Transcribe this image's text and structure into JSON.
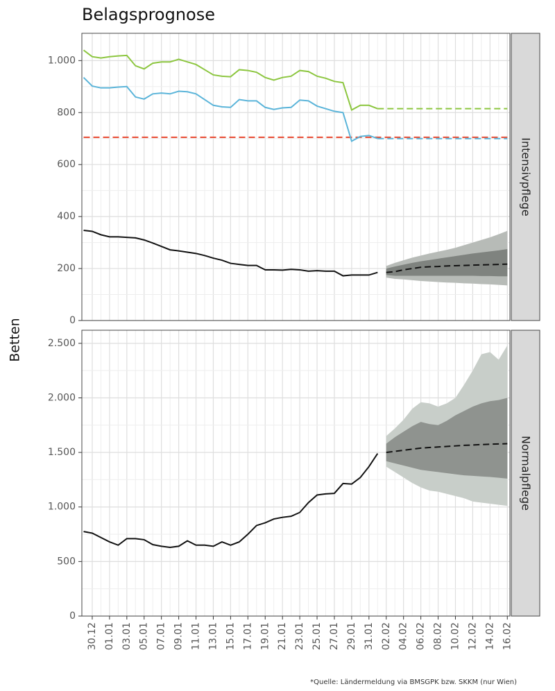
{
  "title": "Belagsprognose",
  "y_label": "Betten",
  "source": "*Quelle: Ländermeldung via BMSGPK bzw. SKKM (nur Wien)",
  "chart_data": [
    {
      "type": "line",
      "panel_label": "Intensivpflege",
      "xlim": [
        -1.2,
        48.3
      ],
      "ylim": [
        0,
        1105
      ],
      "xticks": [
        {
          "value": 0,
          "label": "30.12"
        },
        {
          "value": 2,
          "label": "01.01"
        },
        {
          "value": 4,
          "label": "03.01"
        },
        {
          "value": 6,
          "label": "05.01"
        },
        {
          "value": 8,
          "label": "07.01"
        },
        {
          "value": 10,
          "label": "09.01"
        },
        {
          "value": 12,
          "label": "11.01"
        },
        {
          "value": 14,
          "label": "13.01"
        },
        {
          "value": 16,
          "label": "15.01"
        },
        {
          "value": 18,
          "label": "17.01"
        },
        {
          "value": 20,
          "label": "19.01"
        },
        {
          "value": 22,
          "label": "21.01"
        },
        {
          "value": 24,
          "label": "23.01"
        },
        {
          "value": 26,
          "label": "25.01"
        },
        {
          "value": 28,
          "label": "27.01"
        },
        {
          "value": 30,
          "label": "29.01"
        },
        {
          "value": 32,
          "label": "31.01"
        },
        {
          "value": 34,
          "label": "02.02"
        },
        {
          "value": 36,
          "label": "04.02"
        },
        {
          "value": 38,
          "label": "06.02"
        },
        {
          "value": 40,
          "label": "08.02"
        },
        {
          "value": 42,
          "label": "10.02"
        },
        {
          "value": 44,
          "label": "12.02"
        },
        {
          "value": 46,
          "label": "14.02"
        },
        {
          "value": 48,
          "label": "16.02"
        }
      ],
      "yticks": [
        0,
        200,
        400,
        600,
        800,
        {
          "value": 1000,
          "label": "1.000"
        }
      ],
      "grid": true,
      "bands": [
        {
          "color": "#b7bbb7",
          "x": [
            34,
            35,
            36,
            37,
            38,
            39,
            40,
            41,
            42,
            43,
            44,
            45,
            46,
            47,
            48
          ],
          "lower": [
            165,
            160,
            158,
            155,
            152,
            150,
            148,
            146,
            145,
            143,
            142,
            140,
            139,
            137,
            135
          ],
          "upper": [
            210,
            222,
            232,
            242,
            250,
            258,
            265,
            272,
            280,
            290,
            300,
            310,
            320,
            332,
            345
          ]
        },
        {
          "color": "#7f837f",
          "x": [
            34,
            35,
            36,
            37,
            38,
            39,
            40,
            41,
            42,
            43,
            44,
            45,
            46,
            47,
            48
          ],
          "lower": [
            175,
            172,
            172,
            172,
            172,
            172,
            172,
            172,
            172,
            172,
            172,
            171,
            171,
            170,
            170
          ],
          "upper": [
            200,
            208,
            215,
            222,
            228,
            233,
            238,
            243,
            248,
            253,
            258,
            262,
            266,
            270,
            275
          ]
        }
      ],
      "series": [
        {
          "color": "#e8452c",
          "dash": true,
          "x": [
            -1,
            48
          ],
          "values": [
            705,
            705
          ]
        },
        {
          "color": "#8cc63f",
          "x": [
            -1,
            0,
            1,
            2,
            3,
            4,
            5,
            6,
            7,
            8,
            9,
            10,
            11,
            12,
            13,
            14,
            15,
            16,
            17,
            18,
            19,
            20,
            21,
            22,
            23,
            24,
            25,
            26,
            27,
            28,
            29,
            30,
            31,
            32,
            33
          ],
          "values": [
            1040,
            1015,
            1010,
            1015,
            1018,
            1020,
            980,
            968,
            990,
            995,
            995,
            1005,
            995,
            985,
            965,
            945,
            940,
            938,
            965,
            962,
            955,
            935,
            925,
            935,
            940,
            962,
            958,
            940,
            932,
            920,
            915,
            810,
            828,
            828,
            815
          ]
        },
        {
          "color": "#8cc63f",
          "dash": true,
          "x": [
            33,
            48
          ],
          "values": [
            815,
            815
          ]
        },
        {
          "color": "#5ab4d9",
          "x": [
            -1,
            0,
            1,
            2,
            3,
            4,
            5,
            6,
            7,
            8,
            9,
            10,
            11,
            12,
            13,
            14,
            15,
            16,
            17,
            18,
            19,
            20,
            21,
            22,
            23,
            24,
            25,
            26,
            27,
            28,
            29,
            30,
            31,
            32,
            33
          ],
          "values": [
            935,
            902,
            895,
            895,
            898,
            900,
            860,
            852,
            872,
            875,
            872,
            882,
            880,
            872,
            850,
            828,
            822,
            820,
            850,
            845,
            845,
            820,
            812,
            818,
            820,
            848,
            845,
            825,
            815,
            805,
            800,
            690,
            708,
            712,
            700
          ]
        },
        {
          "color": "#5ab4d9",
          "dash": true,
          "x": [
            33,
            48
          ],
          "values": [
            700,
            700
          ]
        },
        {
          "color": "#111111",
          "x": [
            -1,
            0,
            1,
            2,
            3,
            4,
            5,
            6,
            7,
            8,
            9,
            10,
            11,
            12,
            13,
            14,
            15,
            16,
            17,
            18,
            19,
            20,
            21,
            22,
            23,
            24,
            25,
            26,
            27,
            28,
            29,
            30,
            31,
            32,
            33
          ],
          "values": [
            347,
            343,
            330,
            322,
            322,
            320,
            318,
            310,
            298,
            285,
            272,
            268,
            263,
            258,
            250,
            240,
            232,
            220,
            216,
            212,
            212,
            195,
            195,
            194,
            197,
            195,
            190,
            192,
            190,
            190,
            172,
            175,
            175,
            175,
            185
          ]
        },
        {
          "color": "#111111",
          "dash": true,
          "x": [
            34,
            35,
            36,
            37,
            38,
            39,
            40,
            41,
            42,
            43,
            44,
            45,
            46,
            47,
            48
          ],
          "values": [
            185,
            188,
            195,
            200,
            205,
            207,
            208,
            210,
            211,
            212,
            213,
            214,
            215,
            216,
            217
          ]
        }
      ]
    },
    {
      "type": "line",
      "panel_label": "Normalpflege",
      "xlim": [
        -1.2,
        48.3
      ],
      "ylim": [
        0,
        2620
      ],
      "xticks": [
        {
          "value": 0,
          "label": "30.12"
        },
        {
          "value": 2,
          "label": "01.01"
        },
        {
          "value": 4,
          "label": "03.01"
        },
        {
          "value": 6,
          "label": "05.01"
        },
        {
          "value": 8,
          "label": "07.01"
        },
        {
          "value": 10,
          "label": "09.01"
        },
        {
          "value": 12,
          "label": "11.01"
        },
        {
          "value": 14,
          "label": "13.01"
        },
        {
          "value": 16,
          "label": "15.01"
        },
        {
          "value": 18,
          "label": "17.01"
        },
        {
          "value": 20,
          "label": "19.01"
        },
        {
          "value": 22,
          "label": "21.01"
        },
        {
          "value": 24,
          "label": "23.01"
        },
        {
          "value": 26,
          "label": "25.01"
        },
        {
          "value": 28,
          "label": "27.01"
        },
        {
          "value": 30,
          "label": "29.01"
        },
        {
          "value": 32,
          "label": "31.01"
        },
        {
          "value": 34,
          "label": "02.02"
        },
        {
          "value": 36,
          "label": "04.02"
        },
        {
          "value": 38,
          "label": "06.02"
        },
        {
          "value": 40,
          "label": "08.02"
        },
        {
          "value": 42,
          "label": "10.02"
        },
        {
          "value": 44,
          "label": "12.02"
        },
        {
          "value": 46,
          "label": "14.02"
        },
        {
          "value": 48,
          "label": "16.02"
        }
      ],
      "yticks": [
        0,
        500,
        {
          "value": 1000,
          "label": "1.000"
        },
        {
          "value": 1500,
          "label": "1.500"
        },
        {
          "value": 2000,
          "label": "2.000"
        },
        {
          "value": 2500,
          "label": "2.500"
        }
      ],
      "grid": true,
      "bands": [
        {
          "color": "#c8cec9",
          "x": [
            34,
            35,
            36,
            37,
            38,
            39,
            40,
            41,
            42,
            43,
            44,
            45,
            46,
            47,
            48
          ],
          "lower": [
            1370,
            1320,
            1270,
            1220,
            1180,
            1150,
            1140,
            1120,
            1100,
            1080,
            1050,
            1040,
            1030,
            1020,
            1010
          ],
          "upper": [
            1650,
            1720,
            1800,
            1900,
            1960,
            1950,
            1920,
            1950,
            2000,
            2120,
            2250,
            2400,
            2420,
            2350,
            2480
          ]
        },
        {
          "color": "#8f938f",
          "x": [
            34,
            35,
            36,
            37,
            38,
            39,
            40,
            41,
            42,
            43,
            44,
            45,
            46,
            47,
            48
          ],
          "lower": [
            1420,
            1400,
            1380,
            1360,
            1340,
            1330,
            1320,
            1310,
            1300,
            1290,
            1285,
            1280,
            1275,
            1268,
            1260
          ],
          "upper": [
            1580,
            1640,
            1690,
            1740,
            1780,
            1760,
            1750,
            1790,
            1840,
            1880,
            1920,
            1950,
            1970,
            1980,
            2000
          ]
        }
      ],
      "series": [
        {
          "color": "#111111",
          "x": [
            -1,
            0,
            1,
            2,
            3,
            4,
            5,
            6,
            7,
            8,
            9,
            10,
            11,
            12,
            13,
            14,
            15,
            16,
            17,
            18,
            19,
            20,
            21,
            22,
            23,
            24,
            25,
            26,
            27,
            28,
            29,
            30,
            31,
            32,
            33
          ],
          "values": [
            775,
            760,
            720,
            680,
            650,
            710,
            710,
            700,
            655,
            640,
            630,
            640,
            690,
            650,
            650,
            640,
            680,
            650,
            680,
            750,
            830,
            855,
            890,
            905,
            915,
            950,
            1040,
            1110,
            1120,
            1125,
            1215,
            1210,
            1270,
            1370,
            1490
          ]
        },
        {
          "color": "#111111",
          "dash": true,
          "x": [
            34,
            35,
            36,
            37,
            38,
            39,
            40,
            41,
            42,
            43,
            44,
            45,
            46,
            47,
            48
          ],
          "values": [
            1500,
            1510,
            1520,
            1530,
            1540,
            1545,
            1550,
            1555,
            1560,
            1565,
            1568,
            1572,
            1575,
            1578,
            1580
          ]
        }
      ]
    }
  ]
}
